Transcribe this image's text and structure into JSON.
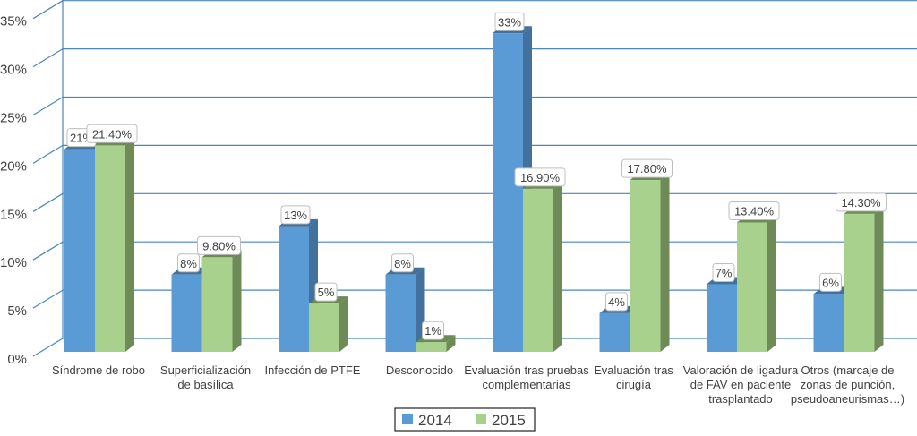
{
  "chart_data": {
    "type": "bar",
    "title": "",
    "xlabel": "",
    "ylabel": "",
    "ylim": [
      0,
      35
    ],
    "yticks": [
      "0%",
      "5%",
      "10%",
      "15%",
      "20%",
      "25%",
      "30%",
      "35%"
    ],
    "grid": true,
    "legend_position": "bottom",
    "categories": [
      [
        "Síndrome de robo"
      ],
      [
        "Superficialización",
        "de basílica"
      ],
      [
        "Infección de PTFE"
      ],
      [
        "Desconocido"
      ],
      [
        "Evaluación tras pruebas",
        "complementarias"
      ],
      [
        "Evaluación tras",
        "cirugía"
      ],
      [
        "Valoración de ligadura",
        "de FAV en paciente",
        "trasplantado"
      ],
      [
        "Otros (marcaje de",
        "zonas de punción,",
        "pseudoaneurismas…)"
      ]
    ],
    "series": [
      {
        "name": "2014",
        "color": "#5b9bd5",
        "side": "#41719c",
        "values": [
          21,
          8,
          13,
          8,
          33,
          4,
          7,
          6
        ],
        "labels": [
          "21%",
          "8%",
          "13%",
          "8%",
          "33%",
          "4%",
          "7%",
          "6%"
        ]
      },
      {
        "name": "2015",
        "color": "#a9d18e",
        "side": "#6d8a57",
        "values": [
          21.4,
          9.8,
          5,
          1,
          16.9,
          17.8,
          13.4,
          14.3
        ],
        "labels": [
          "21.40%",
          "9.80%",
          "5%",
          "1%",
          "16.90%",
          "17.80%",
          "13.40%",
          "14.30%"
        ]
      }
    ]
  }
}
